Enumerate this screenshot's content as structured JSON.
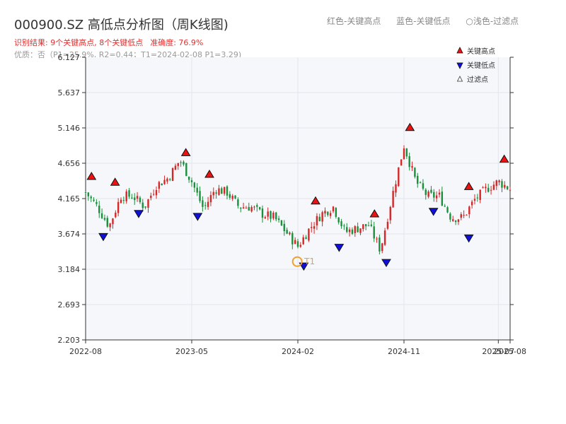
{
  "header": {
    "title": "000900.SZ 高低点分析图（周K线图)",
    "legend_red": "红色-关键高点",
    "legend_blue": "蓝色-关键低点",
    "legend_filtered": "○浅色-过滤点",
    "result_text": "识别结果: 9个关键高点, 8个关键低点",
    "accuracy_text": "准确度: 76.9%",
    "quality_text": "优质：否（P1=25.9%, R2=0.44；T1=2024-02-08 P1=3.29)"
  },
  "colors": {
    "up": "#d62728",
    "down": "#1a8f3c",
    "high_marker": "#ee1111",
    "low_marker": "#1010dd",
    "t1": "#f0a030",
    "plot_bg": "#f5f7fa",
    "grid": "#e2e6ec"
  },
  "chart_data": {
    "type": "candlestick",
    "title": "000900.SZ 高低点分析图（周K线图)",
    "ylim": [
      2.203,
      6.127
    ],
    "y_ticks": [
      "6.127",
      "5.637",
      "5.146",
      "4.656",
      "4.165",
      "3.674",
      "3.184",
      "2.693",
      "2.203"
    ],
    "x_range": [
      "2022-08",
      "2025-08"
    ],
    "x_ticks": [
      "2022-08",
      "2023-05",
      "2024-02",
      "2024-11",
      "2025-07",
      "2025-08"
    ],
    "legend": [
      "关键高点",
      "关键低点",
      "过滤点"
    ],
    "legend_position": "top-right",
    "grid": true,
    "anchor_closes": [
      [
        "2022-08",
        4.25
      ],
      [
        "2022-09",
        4.05
      ],
      [
        "2022-10",
        3.78
      ],
      [
        "2022-11",
        4.2
      ],
      [
        "2022-12",
        4.2
      ],
      [
        "2023-01",
        4.05
      ],
      [
        "2023-02",
        4.35
      ],
      [
        "2023-03",
        4.45
      ],
      [
        "2023-04",
        4.7
      ],
      [
        "2023-05",
        4.4
      ],
      [
        "2023-06",
        4.02
      ],
      [
        "2023-07",
        4.3
      ],
      [
        "2023-08",
        4.25
      ],
      [
        "2023-09",
        4.05
      ],
      [
        "2023-10",
        4.05
      ],
      [
        "2023-11",
        3.95
      ],
      [
        "2023-12",
        3.9
      ],
      [
        "2024-01",
        3.7
      ],
      [
        "2024-02",
        3.5
      ],
      [
        "2024-03",
        3.75
      ],
      [
        "2024-04",
        3.95
      ],
      [
        "2024-05",
        4.05
      ],
      [
        "2024-06",
        3.7
      ],
      [
        "2024-07",
        3.75
      ],
      [
        "2024-08",
        3.8
      ],
      [
        "2024-09",
        3.45
      ],
      [
        "2024-10",
        4.2
      ],
      [
        "2024-11",
        4.9
      ],
      [
        "2024-12",
        4.4
      ],
      [
        "2025-01",
        4.2
      ],
      [
        "2025-02",
        4.2
      ],
      [
        "2025-03",
        3.9
      ],
      [
        "2025-04",
        3.9
      ],
      [
        "2025-05",
        4.15
      ],
      [
        "2025-06",
        4.3
      ],
      [
        "2025-07",
        4.4
      ],
      [
        "2025-08",
        4.3
      ]
    ],
    "key_highs": [
      {
        "date": "2022-08",
        "value": 4.4
      },
      {
        "date": "2022-10",
        "value": 4.32
      },
      {
        "date": "2023-04",
        "value": 4.73
      },
      {
        "date": "2023-06",
        "value": 4.43
      },
      {
        "date": "2024-03",
        "value": 4.06
      },
      {
        "date": "2024-08",
        "value": 3.88
      },
      {
        "date": "2024-11",
        "value": 5.08
      },
      {
        "date": "2025-04",
        "value": 4.26
      },
      {
        "date": "2025-07",
        "value": 4.64
      }
    ],
    "key_lows": [
      {
        "date": "2022-09",
        "value": 3.71
      },
      {
        "date": "2022-12",
        "value": 4.03
      },
      {
        "date": "2023-05",
        "value": 3.99
      },
      {
        "date": "2024-02",
        "value": 3.3
      },
      {
        "date": "2024-05",
        "value": 3.56
      },
      {
        "date": "2024-09",
        "value": 3.35
      },
      {
        "date": "2025-01",
        "value": 4.06
      },
      {
        "date": "2025-04",
        "value": 3.69
      }
    ],
    "t1": {
      "label": "T1",
      "date": "2024-02",
      "value": 3.29
    }
  }
}
